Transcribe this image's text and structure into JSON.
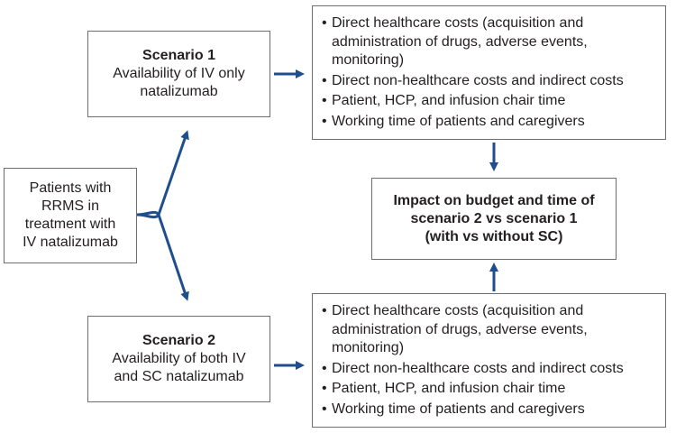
{
  "start": {
    "lines": [
      "Patients with",
      "RRMS in",
      "treatment with",
      "IV natalizumab"
    ]
  },
  "scenario1": {
    "title": "Scenario 1",
    "lines": [
      "Availability of IV only",
      "natalizumab"
    ]
  },
  "scenario2": {
    "title": "Scenario 2",
    "lines": [
      "Availability of both IV",
      "and SC natalizumab"
    ]
  },
  "costs1": {
    "items": [
      "Direct healthcare costs (acquisition and administration of drugs, adverse events, monitoring)",
      "Direct non-healthcare costs and indirect costs",
      "Patient, HCP, and infusion chair time",
      "Working time of patients and caregivers"
    ]
  },
  "costs2": {
    "items": [
      "Direct healthcare costs (acquisition and administration of drugs, adverse events, monitoring)",
      "Direct non-healthcare costs and indirect costs",
      "Patient, HCP, and infusion chair time",
      "Working time of patients and caregivers"
    ]
  },
  "impact": {
    "lines": [
      "Impact on budget and time of",
      "scenario 2 vs scenario 1",
      "(with vs without SC)"
    ]
  },
  "colors": {
    "arrow": "#1f4e8c",
    "border": "#6d6e71",
    "text": "#231f20"
  }
}
